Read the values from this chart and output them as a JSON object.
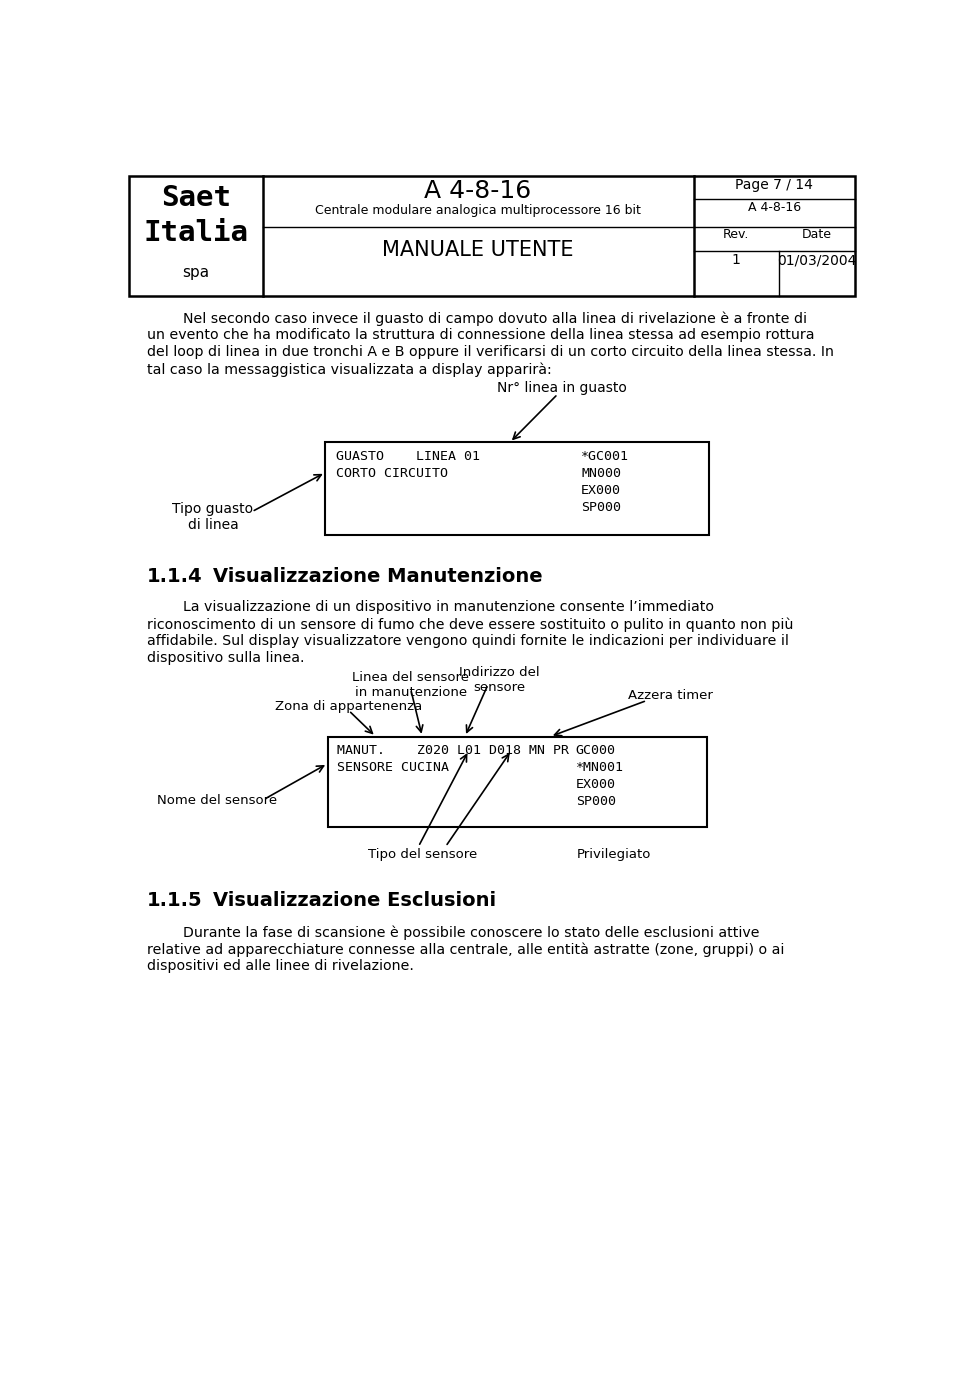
{
  "page_title": "A 4-8-16",
  "page_subtitle": "Centrale modulare analogica multiprocessore 16 bit",
  "manual_title": "MANUALE UTENTE",
  "company_name_1": "Saet",
  "company_name_2": "Italia",
  "company_name_3": "spa",
  "page_info": "Page 7 / 14",
  "doc_ref": "A 4-8-16",
  "rev_label": "Rev.",
  "date_label": "Date",
  "rev_value": "1",
  "date_value": "01/03/2004",
  "label_nr_linea": "Nr° linea in guasto",
  "label_tipo_guasto": "Tipo guasto\ndi linea",
  "section_114": "1.1.4",
  "section_114_title": "Visualizzazione Manutenzione",
  "label_linea_sensore": "Linea del sensore\nin manutenzione",
  "label_zona": "Zona di appartenenza",
  "label_indirizzo": "Indirizzo del\nsensore",
  "label_azzera": "Azzera timer",
  "label_nome_sensore": "Nome del sensore",
  "label_tipo_sensore": "Tipo del sensore",
  "label_privilegiato": "Privilegiato",
  "section_115": "1.1.5",
  "section_115_title": "Visualizzazione Esclusioni",
  "bg_color": "#ffffff",
  "text_color": "#000000"
}
